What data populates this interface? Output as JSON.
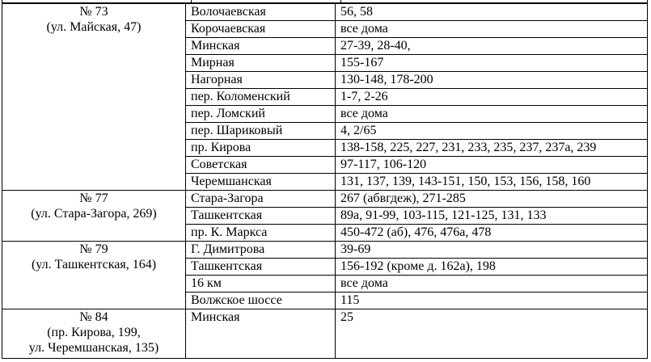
{
  "groups": [
    {
      "number": "№ 73",
      "address": "(ул. Майская, 47)",
      "rows": [
        {
          "street": "Волочаевская",
          "houses": "56, 58"
        },
        {
          "street": "Корочаевская",
          "houses": "все дома"
        },
        {
          "street": "Минская",
          "houses": "27-39, 28-40,"
        },
        {
          "street": "Мирная",
          "houses": "155-167"
        },
        {
          "street": "Нагорная",
          "houses": "130-148, 178-200"
        },
        {
          "street": "пер. Коломенский",
          "houses": "1-7, 2-26"
        },
        {
          "street": "пер. Ломский",
          "houses": "все дома"
        },
        {
          "street": "пер. Шариковый",
          "houses": "4, 2/65"
        },
        {
          "street": "пр. Кирова",
          "houses": "138-158, 225, 227, 231, 233, 235, 237, 237а, 239"
        },
        {
          "street": "Советская",
          "houses": "97-117, 106-120"
        },
        {
          "street": "Черемшанская",
          "houses": "131, 137, 139, 143-151, 150, 153, 156, 158, 160"
        }
      ]
    },
    {
      "number": "№ 77",
      "address": "(ул. Стара-Загора, 269)",
      "rows": [
        {
          "street": "Стара-Загора",
          "houses": "267 (абвгдеж), 271-285"
        },
        {
          "street": "Ташкентская",
          "houses": "89а, 91-99, 103-115, 121-125, 131, 133"
        },
        {
          "street": "пр. К. Маркса",
          "houses": "450-472 (аб), 476, 476а, 478"
        }
      ]
    },
    {
      "number": "№ 79",
      "address": "(ул. Ташкентская, 164)",
      "rows": [
        {
          "street": "Г. Димитрова",
          "houses": "39-69"
        },
        {
          "street": "Ташкентская",
          "houses": "156-192 (кроме д. 162а), 198"
        },
        {
          "street": "16 км",
          "houses": "все дома"
        },
        {
          "street": "Волжское шоссе",
          "houses": "115"
        }
      ]
    },
    {
      "number": "№ 84",
      "address": "(пр. Кирова, 199,",
      "address2": "ул. Черемшанская, 135)",
      "rows": [
        {
          "street": "Минская",
          "houses": "25"
        }
      ]
    }
  ]
}
